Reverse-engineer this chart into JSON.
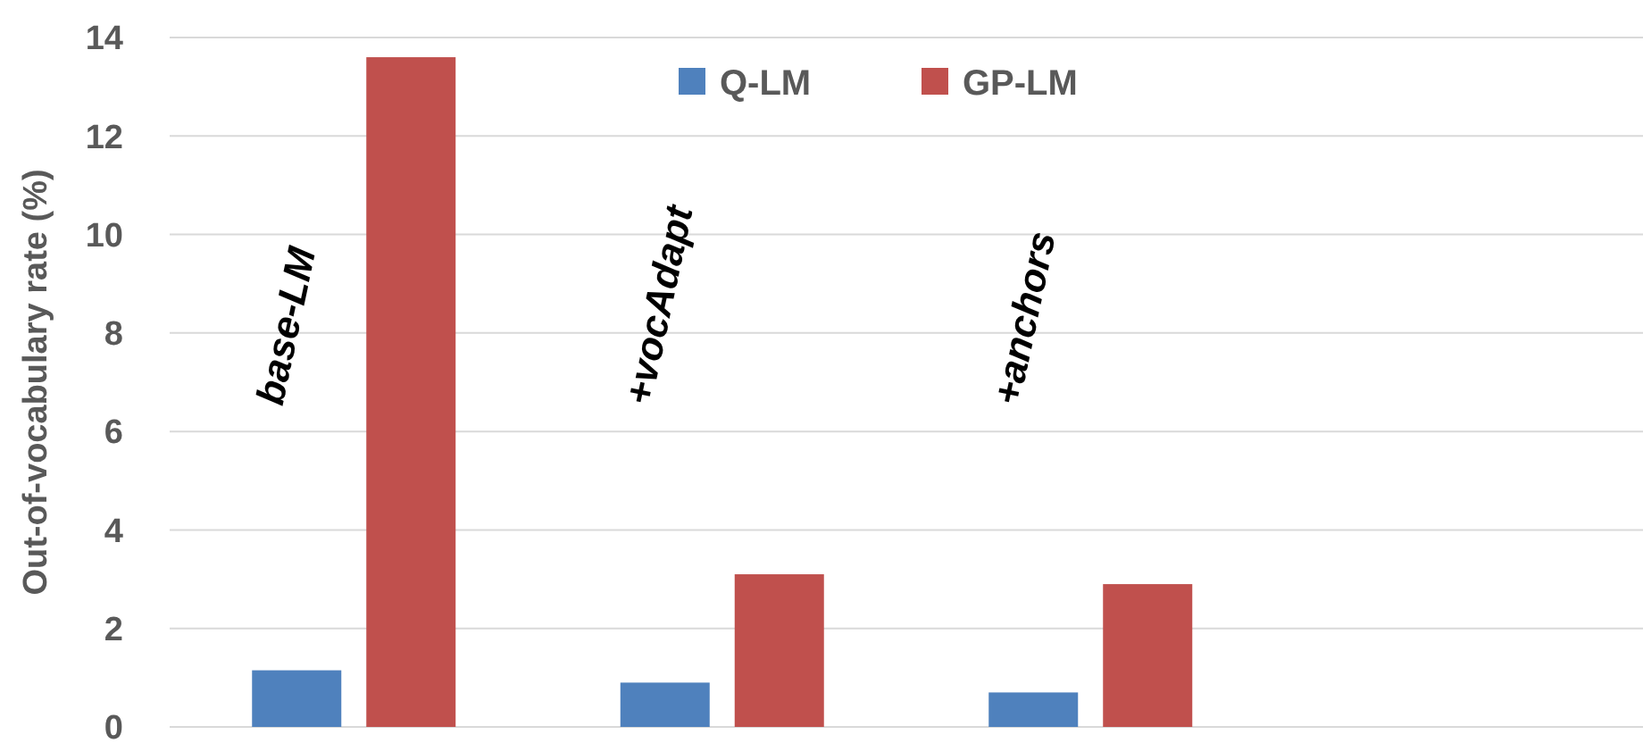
{
  "chart_data": {
    "type": "bar",
    "ylabel": "Out-of-vocabulary rate (%)",
    "categories": [
      "base-LM",
      "+vocAdapt",
      "+anchors",
      null
    ],
    "series": [
      {
        "name": "Q-LM",
        "color": "#4f81bd",
        "values": [
          1.15,
          0.9,
          0.7,
          null
        ]
      },
      {
        "name": "GP-LM",
        "color": "#c0504d",
        "values": [
          13.6,
          3.1,
          2.9,
          null
        ]
      }
    ],
    "ylim": [
      0,
      14
    ],
    "yticks": [
      0,
      2,
      4,
      6,
      8,
      10,
      12,
      14
    ],
    "grid": "y",
    "legend": "top"
  }
}
